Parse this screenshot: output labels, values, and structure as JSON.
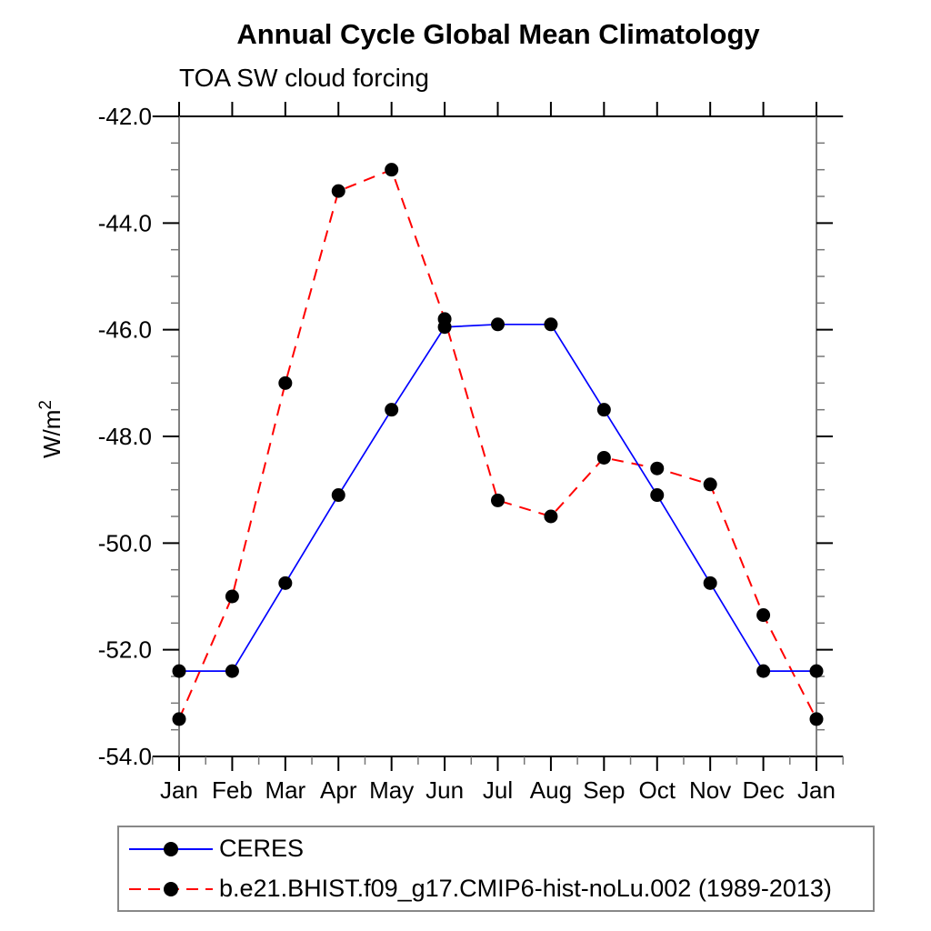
{
  "chart_data": {
    "type": "line",
    "title": "Annual Cycle Global Mean Climatology",
    "subtitle": "TOA SW cloud forcing",
    "ylabel": "W/m²",
    "categories": [
      "Jan",
      "Feb",
      "Mar",
      "Apr",
      "May",
      "Jun",
      "Jul",
      "Aug",
      "Sep",
      "Oct",
      "Nov",
      "Dec",
      "Jan"
    ],
    "ylim": [
      -54.0,
      -42.0
    ],
    "y_major_ticks": [
      -42.0,
      -44.0,
      -46.0,
      -48.0,
      -50.0,
      -52.0,
      -54.0
    ],
    "y_tick_labels": [
      "-42.0",
      "-44.0",
      "-46.0",
      "-48.0",
      "-50.0",
      "-52.0",
      "-54.0"
    ],
    "y_minor_step": 0.5,
    "grid": false,
    "legend_position": "bottom-left box",
    "axis_color": "#000000",
    "spine_color": "#808080",
    "minor_tick_color": "#777777",
    "marker_color": "#000000",
    "series": [
      {
        "name": "CERES",
        "color": "#0000ff",
        "line_style": "solid",
        "marker": "filled-circle",
        "values": [
          -52.4,
          -52.4,
          -50.75,
          -49.1,
          -47.5,
          -45.95,
          -45.9,
          -45.9,
          -47.5,
          -49.1,
          -50.75,
          -52.4,
          -52.4
        ]
      },
      {
        "name": "b.e21.BHIST.f09_g17.CMIP6-hist-noLu.002 (1989-2013)",
        "color": "#ff0000",
        "line_style": "dashed",
        "marker": "filled-circle",
        "values": [
          -53.3,
          -51.0,
          -47.0,
          -43.4,
          -43.0,
          -45.8,
          -49.2,
          -49.5,
          -48.4,
          -48.6,
          -48.9,
          -51.35,
          -53.3
        ]
      }
    ]
  }
}
